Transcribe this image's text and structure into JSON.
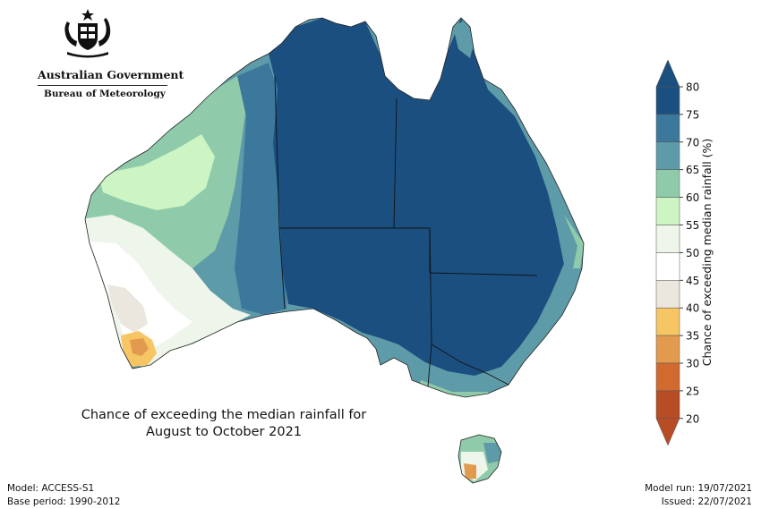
{
  "logo": {
    "emblem": "australian-coat-of-arms",
    "organisation": "Australian Government",
    "agency": "Bureau of Meteorology"
  },
  "map": {
    "title_line1": "Chance of exceeding the median rainfall for",
    "title_line2": "August to October 2021",
    "region": "Australia"
  },
  "footer": {
    "model": "Model: ACCESS-S1",
    "base_period": "Base period: 1990-2012",
    "model_run": "Model run: 19/07/2021",
    "issued": "Issued: 22/07/2021"
  },
  "legend": {
    "title": "Chance of exceeding median rainfall (%)",
    "tick_labels": [
      "80",
      "75",
      "70",
      "65",
      "60",
      "55",
      "50",
      "45",
      "40",
      "35",
      "30",
      "25",
      "20"
    ],
    "colors": {
      "75-80": "#1b4f80",
      "70-75": "#3c779c",
      "65-70": "#5e9ba8",
      "60-65": "#8fcbaa",
      "55-60": "#cdf5c4",
      "50-55": "#eef5ea",
      "45-50": "#ffffff",
      "40-45": "#ebe7df",
      "35-40": "#f7c664",
      "30-35": "#e29b4e",
      "25-30": "#d26a30",
      "20-25": "#b84c24"
    }
  }
}
